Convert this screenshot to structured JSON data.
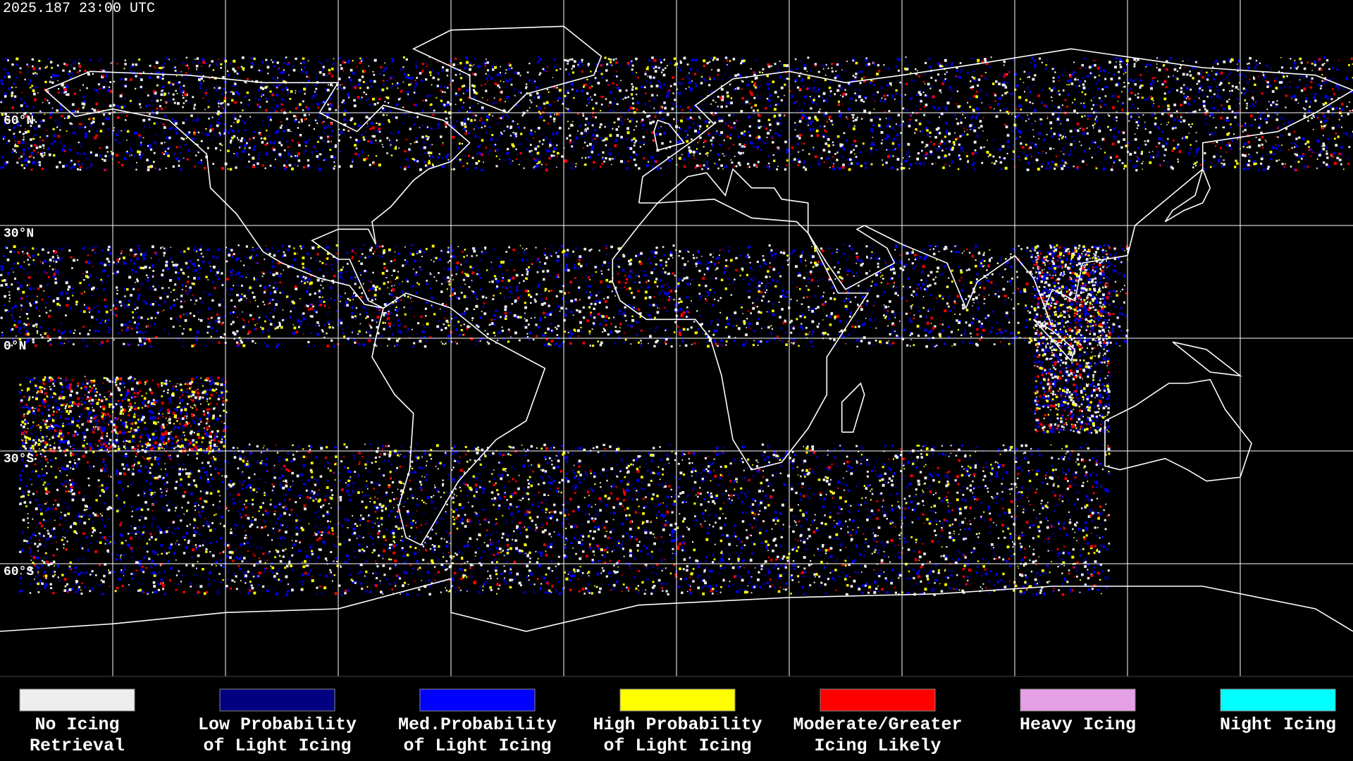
{
  "header": {
    "timestamp": "2025.187 23:00 UTC"
  },
  "map": {
    "latitude_labels": [
      "60°N",
      "30°N",
      "0°N",
      "30°S",
      "60°S"
    ]
  },
  "legend": [
    {
      "label_lines": [
        "No Icing",
        "Retrieval"
      ],
      "color": "#eeeeee"
    },
    {
      "label_lines": [
        "Low Probability",
        "of Light Icing"
      ],
      "color": "#000080"
    },
    {
      "label_lines": [
        "Med.Probability",
        "of Light Icing"
      ],
      "color": "#0000ff"
    },
    {
      "label_lines": [
        "High Probability",
        "of Light Icing"
      ],
      "color": "#ffff00"
    },
    {
      "label_lines": [
        "Moderate/Greater",
        "Icing Likely"
      ],
      "color": "#ff0000"
    },
    {
      "label_lines": [
        "Heavy Icing"
      ],
      "color": "#e6a0e6"
    },
    {
      "label_lines": [
        "Night Icing"
      ],
      "color": "#00ffff"
    }
  ]
}
